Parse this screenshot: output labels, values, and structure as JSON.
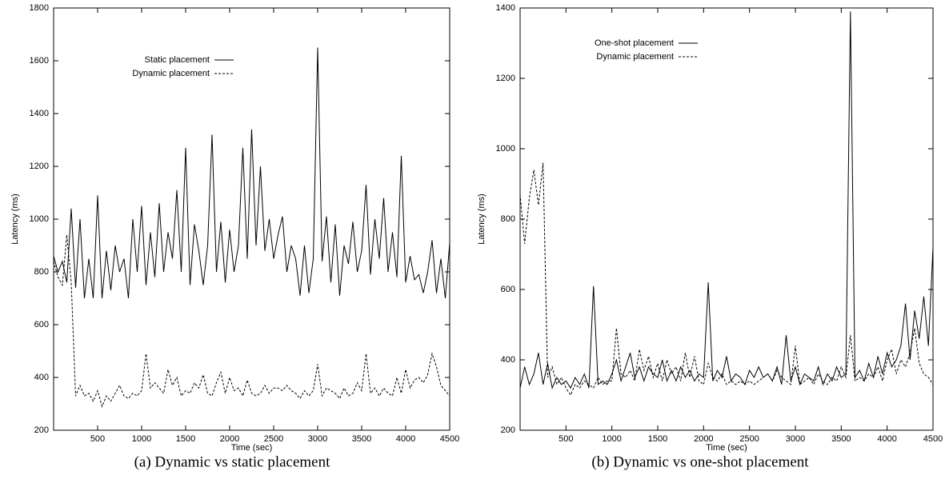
{
  "chart_data": [
    {
      "type": "line",
      "caption": "(a) Dynamic vs static placement",
      "xlabel": "Time (sec)",
      "ylabel": "Latency (ms)",
      "x": [
        0,
        50,
        100,
        150,
        200,
        250,
        300,
        350,
        400,
        450,
        500,
        550,
        600,
        650,
        700,
        750,
        800,
        850,
        900,
        950,
        1000,
        1050,
        1100,
        1150,
        1200,
        1250,
        1300,
        1350,
        1400,
        1450,
        1500,
        1550,
        1600,
        1650,
        1700,
        1750,
        1800,
        1850,
        1900,
        1950,
        2000,
        2050,
        2100,
        2150,
        2200,
        2250,
        2300,
        2350,
        2400,
        2450,
        2500,
        2550,
        2600,
        2650,
        2700,
        2750,
        2800,
        2850,
        2900,
        2950,
        3000,
        3050,
        3100,
        3150,
        3200,
        3250,
        3300,
        3350,
        3400,
        3450,
        3500,
        3550,
        3600,
        3650,
        3700,
        3750,
        3800,
        3850,
        3900,
        3950,
        4000,
        4050,
        4100,
        4150,
        4200,
        4250,
        4300,
        4350,
        4400,
        4450,
        4500
      ],
      "series": [
        {
          "name": "Static placement",
          "color": "#000000",
          "dash": false,
          "values": [
            860,
            800,
            840,
            760,
            1040,
            740,
            1000,
            700,
            850,
            700,
            1090,
            700,
            880,
            730,
            900,
            800,
            850,
            700,
            1000,
            800,
            1050,
            750,
            950,
            780,
            1060,
            800,
            950,
            850,
            1110,
            800,
            1270,
            750,
            980,
            880,
            750,
            900,
            1320,
            800,
            990,
            760,
            960,
            800,
            900,
            1270,
            850,
            1340,
            900,
            1200,
            880,
            1000,
            850,
            940,
            1010,
            800,
            900,
            850,
            710,
            900,
            720,
            850,
            1650,
            840,
            1010,
            760,
            980,
            710,
            900,
            830,
            990,
            800,
            880,
            1130,
            790,
            1000,
            850,
            1080,
            800,
            950,
            780,
            1240,
            760,
            860,
            770,
            790,
            720,
            800,
            920,
            720,
            850,
            700,
            910
          ]
        },
        {
          "name": "Dynamic placement",
          "color": "#000000",
          "dash": true,
          "values": [
            840,
            780,
            750,
            940,
            760,
            330,
            370,
            330,
            340,
            310,
            350,
            290,
            330,
            310,
            340,
            370,
            330,
            320,
            340,
            330,
            350,
            490,
            360,
            380,
            360,
            340,
            430,
            370,
            400,
            330,
            350,
            340,
            380,
            360,
            410,
            340,
            330,
            380,
            420,
            340,
            400,
            350,
            360,
            330,
            390,
            340,
            330,
            340,
            370,
            340,
            360,
            360,
            350,
            370,
            350,
            340,
            320,
            350,
            330,
            350,
            450,
            330,
            360,
            350,
            340,
            320,
            360,
            330,
            340,
            380,
            350,
            490,
            340,
            360,
            330,
            360,
            340,
            330,
            400,
            340,
            430,
            360,
            390,
            400,
            380,
            410,
            490,
            440,
            370,
            350,
            330
          ]
        }
      ],
      "xlim": [
        0,
        4500
      ],
      "xticks": [
        500,
        1000,
        1500,
        2000,
        2500,
        3000,
        3500,
        4000,
        4500
      ],
      "ylim": [
        200,
        1800
      ],
      "yticks": [
        200,
        400,
        600,
        800,
        1000,
        1200,
        1400,
        1600,
        1800
      ]
    },
    {
      "type": "line",
      "caption": "(b) Dynamic vs one-shot placement",
      "xlabel": "Time (sec)",
      "ylabel": "Latency (ms)",
      "x": [
        0,
        50,
        100,
        150,
        200,
        250,
        300,
        350,
        400,
        450,
        500,
        550,
        600,
        650,
        700,
        750,
        800,
        850,
        900,
        950,
        1000,
        1050,
        1100,
        1150,
        1200,
        1250,
        1300,
        1350,
        1400,
        1450,
        1500,
        1550,
        1600,
        1650,
        1700,
        1750,
        1800,
        1850,
        1900,
        1950,
        2000,
        2050,
        2100,
        2150,
        2200,
        2250,
        2300,
        2350,
        2400,
        2450,
        2500,
        2550,
        2600,
        2650,
        2700,
        2750,
        2800,
        2850,
        2900,
        2950,
        3000,
        3050,
        3100,
        3150,
        3200,
        3250,
        3300,
        3350,
        3400,
        3450,
        3500,
        3550,
        3600,
        3650,
        3700,
        3750,
        3800,
        3850,
        3900,
        3950,
        4000,
        4050,
        4100,
        4150,
        4200,
        4250,
        4300,
        4350,
        4400,
        4450,
        4500
      ],
      "series": [
        {
          "name": "One-shot placement",
          "color": "#000000",
          "dash": false,
          "values": [
            320,
            380,
            330,
            360,
            420,
            330,
            390,
            320,
            350,
            330,
            340,
            320,
            350,
            330,
            360,
            320,
            610,
            330,
            340,
            330,
            360,
            400,
            340,
            380,
            420,
            350,
            380,
            340,
            380,
            360,
            350,
            400,
            340,
            370,
            340,
            380,
            350,
            370,
            340,
            360,
            350,
            620,
            340,
            370,
            350,
            410,
            340,
            360,
            350,
            330,
            370,
            350,
            380,
            350,
            360,
            340,
            380,
            330,
            470,
            340,
            380,
            330,
            360,
            350,
            340,
            380,
            330,
            360,
            340,
            380,
            350,
            360,
            1390,
            350,
            370,
            340,
            390,
            350,
            410,
            360,
            420,
            380,
            400,
            440,
            560,
            400,
            540,
            460,
            580,
            440,
            720
          ]
        },
        {
          "name": "Dynamic placement",
          "color": "#000000",
          "dash": true,
          "values": [
            870,
            730,
            860,
            940,
            840,
            960,
            350,
            380,
            330,
            350,
            320,
            300,
            330,
            320,
            340,
            330,
            320,
            350,
            330,
            340,
            340,
            490,
            360,
            350,
            370,
            340,
            430,
            370,
            410,
            350,
            390,
            340,
            400,
            360,
            380,
            340,
            420,
            350,
            410,
            340,
            330,
            390,
            350,
            340,
            360,
            330,
            340,
            330,
            340,
            330,
            340,
            330,
            340,
            350,
            360,
            340,
            370,
            350,
            340,
            330,
            440,
            330,
            340,
            350,
            330,
            360,
            340,
            330,
            350,
            340,
            380,
            350,
            470,
            340,
            350,
            340,
            360,
            350,
            380,
            340,
            400,
            430,
            360,
            400,
            380,
            420,
            490,
            390,
            360,
            350,
            330
          ]
        }
      ],
      "xlim": [
        0,
        4500
      ],
      "xticks": [
        500,
        1000,
        1500,
        2000,
        2500,
        3000,
        3500,
        4000,
        4500
      ],
      "ylim": [
        200,
        1400
      ],
      "yticks": [
        200,
        400,
        600,
        800,
        1000,
        1200,
        1400
      ]
    }
  ]
}
